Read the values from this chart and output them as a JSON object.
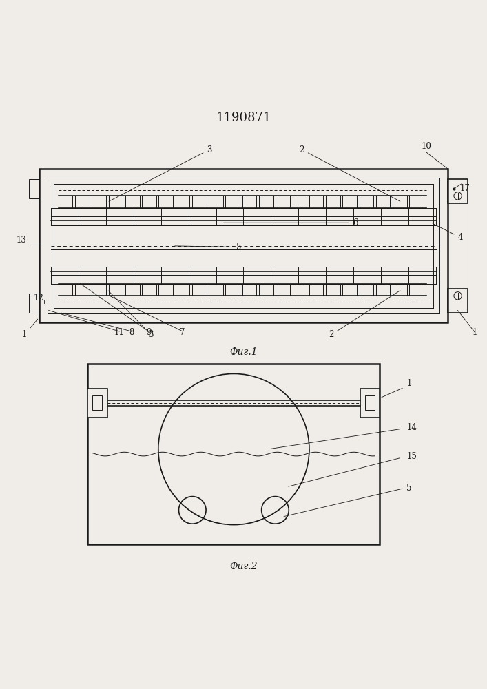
{
  "title": "1190871",
  "fig1_label": "Фиг.1",
  "fig2_label": "Фиг.2",
  "bg_color": "#f0ede8",
  "line_color": "#1a1a1a"
}
